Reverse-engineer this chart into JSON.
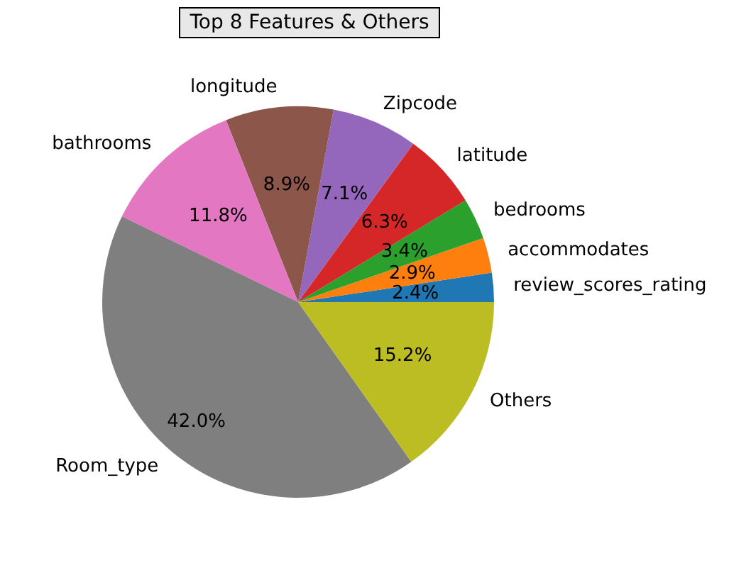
{
  "chart_data": {
    "type": "pie",
    "title": "Top 8 Features & Others",
    "categories": [
      "review_scores_rating",
      "accommodates",
      "bedrooms",
      "latitude",
      "Zipcode",
      "longitude",
      "bathrooms",
      "Room_type",
      "Others"
    ],
    "values": [
      2.4,
      2.9,
      3.4,
      6.3,
      7.1,
      8.9,
      11.8,
      42.0,
      15.2
    ],
    "colors": [
      "#1f77b4",
      "#ff7f0e",
      "#2ca02c",
      "#d62728",
      "#9467bd",
      "#8c564b",
      "#e377c2",
      "#7f7f7f",
      "#bcbd22"
    ],
    "value_labels": [
      "2.4%",
      "2.9%",
      "3.4%",
      "6.3%",
      "7.1%",
      "8.9%",
      "11.8%",
      "42.0%",
      "15.2%"
    ]
  }
}
